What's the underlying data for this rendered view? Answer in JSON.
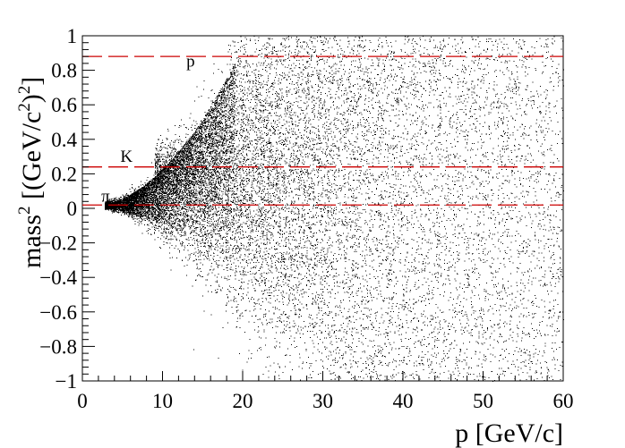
{
  "chart_data": {
    "type": "scatter",
    "xlabel": "p [GeV/c]",
    "ylabel_main": "mass",
    "ylabel_sup": "2",
    "ylabel_rest": " [(GeV/c",
    "ylabel_sup2": "2",
    "ylabel_end": ")",
    "ylabel_sup3": "2",
    "ylabel_close": "]",
    "xlim": [
      0,
      60
    ],
    "ylim": [
      -1,
      1
    ],
    "x_ticks": [
      0,
      10,
      20,
      30,
      40,
      50,
      60
    ],
    "y_ticks": [
      -1,
      -0.8,
      -0.6,
      -0.4,
      -0.2,
      0,
      0.2,
      0.4,
      0.6,
      0.8,
      1
    ],
    "x_tick_labels": [
      "0",
      "10",
      "20",
      "30",
      "40",
      "50",
      "60"
    ],
    "y_tick_labels": [
      "−1",
      "−0.8",
      "−0.6",
      "−0.4",
      "−0.2",
      "0",
      "0.2",
      "0.4",
      "0.6",
      "0.8",
      "1"
    ],
    "reference_lines": [
      {
        "label": "p",
        "mass2": 0.88,
        "label_x": 13.5,
        "label_y": 0.82
      },
      {
        "label": "K",
        "mass2": 0.24,
        "label_x": 5.5,
        "label_y": 0.27
      },
      {
        "label": "π",
        "mass2": 0.0195,
        "label_x": 2.9,
        "label_y": 0.04
      }
    ],
    "bands": [
      {
        "name": "pion",
        "mass2": 0.0195,
        "x_start": 2.8,
        "x_end": 60
      },
      {
        "name": "kaon",
        "mass2": 0.24,
        "x_start": 9,
        "x_end": 60
      },
      {
        "name": "proton",
        "mass2": 0.88,
        "x_start": 18,
        "x_end": 60
      }
    ],
    "grid": false,
    "legend": "none",
    "point_color": "#000000",
    "line_color": "#cc0000"
  }
}
